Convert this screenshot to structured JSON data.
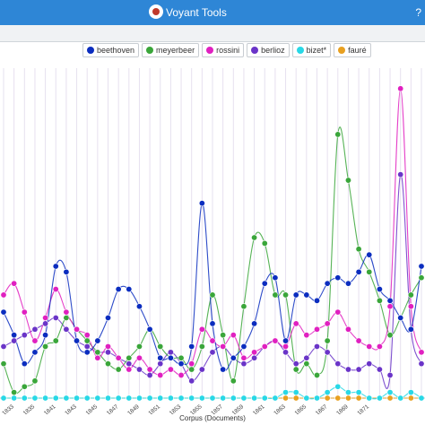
{
  "app": {
    "title": "Voyant Tools",
    "more": "?"
  },
  "chart_data": {
    "type": "line",
    "xlabel": "Corpus (Documents)",
    "x_ticks": [
      "1833",
      "1835",
      "1841",
      "1843",
      "1845",
      "1847",
      "1849",
      "1851",
      "1853",
      "1855",
      "1857",
      "1859",
      "1861",
      "1863",
      "1865",
      "1867",
      "1869",
      "1871"
    ],
    "n_points": 41,
    "legend": {
      "placement": "top-center"
    },
    "series": [
      {
        "name": "beethoven",
        "color": "#0b2dbf",
        "values": [
          0.15,
          0.11,
          0.06,
          0.08,
          0.11,
          0.23,
          0.22,
          0.1,
          0.08,
          0.1,
          0.14,
          0.19,
          0.19,
          0.16,
          0.12,
          0.07,
          0.07,
          0.06,
          0.09,
          0.34,
          0.13,
          0.05,
          0.07,
          0.09,
          0.13,
          0.2,
          0.21,
          0.1,
          0.18,
          0.18,
          0.17,
          0.2,
          0.21,
          0.2,
          0.22,
          0.25,
          0.19,
          0.17,
          0.14,
          0.12,
          0.23
        ]
      },
      {
        "name": "meyerbeer",
        "color": "#3aa63a",
        "values": [
          0.06,
          0.01,
          0.02,
          0.03,
          0.09,
          0.1,
          0.14,
          0.12,
          0.1,
          0.08,
          0.06,
          0.05,
          0.07,
          0.09,
          0.12,
          0.09,
          0.07,
          0.07,
          0.05,
          0.09,
          0.18,
          0.11,
          0.03,
          0.16,
          0.28,
          0.27,
          0.18,
          0.18,
          0.05,
          0.06,
          0.04,
          0.1,
          0.46,
          0.38,
          0.26,
          0.22,
          0.17,
          0.11,
          0.14,
          0.18,
          0.21
        ]
      },
      {
        "name": "rossini",
        "color": "#e020c0",
        "values": [
          0.18,
          0.2,
          0.15,
          0.1,
          0.14,
          0.19,
          0.15,
          0.12,
          0.11,
          0.07,
          0.09,
          0.07,
          0.05,
          0.07,
          0.05,
          0.04,
          0.05,
          0.04,
          0.06,
          0.12,
          0.1,
          0.09,
          0.11,
          0.07,
          0.08,
          0.09,
          0.1,
          0.09,
          0.13,
          0.11,
          0.12,
          0.13,
          0.15,
          0.12,
          0.1,
          0.09,
          0.09,
          0.16,
          0.54,
          0.16,
          0.08
        ]
      },
      {
        "name": "berlioz",
        "color": "#6a34c8",
        "values": [
          0.09,
          0.1,
          0.11,
          0.12,
          0.13,
          0.14,
          0.12,
          0.1,
          0.09,
          0.08,
          0.08,
          0.07,
          0.06,
          0.05,
          0.04,
          0.06,
          0.08,
          0.06,
          0.03,
          0.05,
          0.08,
          0.09,
          0.07,
          0.06,
          0.07,
          0.09,
          0.1,
          0.08,
          0.06,
          0.07,
          0.09,
          0.08,
          0.06,
          0.05,
          0.05,
          0.06,
          0.05,
          0.04,
          0.39,
          0.12,
          0.06
        ]
      },
      {
        "name": "bizet*",
        "color": "#28d8e6",
        "values": [
          0,
          0,
          0,
          0,
          0,
          0,
          0,
          0,
          0,
          0,
          0,
          0,
          0,
          0,
          0,
          0,
          0,
          0,
          0,
          0,
          0,
          0,
          0,
          0,
          0,
          0,
          0,
          0.01,
          0.01,
          0,
          0,
          0.01,
          0.02,
          0.01,
          0.01,
          0,
          0,
          0.01,
          0,
          0.01,
          0
        ]
      },
      {
        "name": "fauré",
        "color": "#e8a020",
        "values": [
          0,
          0,
          0,
          0,
          0,
          0,
          0,
          0,
          0,
          0,
          0,
          0,
          0,
          0,
          0,
          0,
          0,
          0,
          0,
          0,
          0,
          0,
          0,
          0,
          0,
          0,
          0,
          0,
          0,
          0,
          0,
          0,
          0,
          0,
          0,
          0,
          0,
          0,
          0,
          0,
          0
        ]
      }
    ],
    "ylim": [
      0,
      0.56
    ],
    "grid": {
      "vertical": true,
      "horizontal": false
    }
  }
}
